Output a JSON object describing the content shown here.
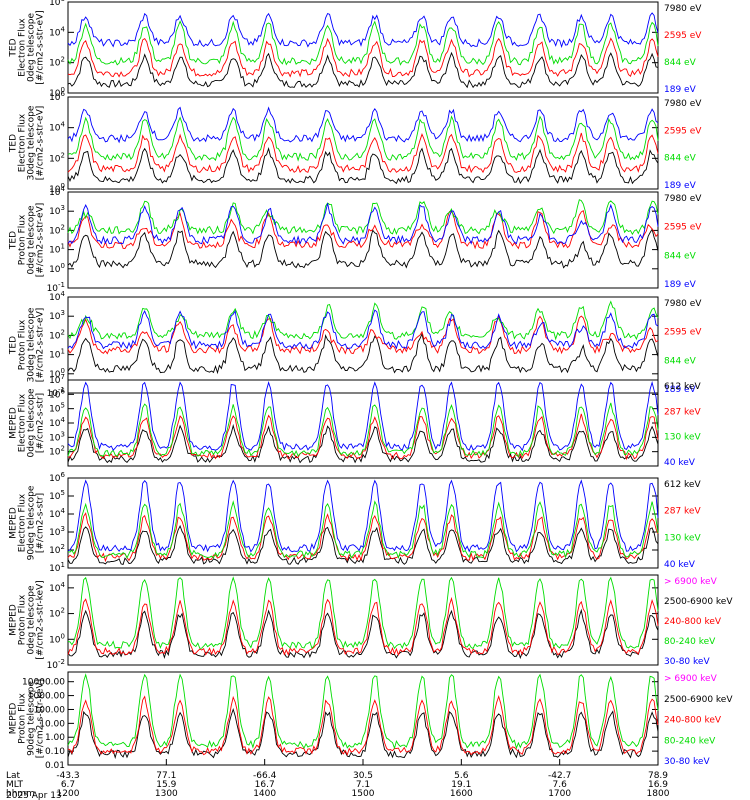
{
  "energy_colors": {
    "black": "#000000",
    "red": "#ff0000",
    "green": "#00dd00",
    "blue": "#0000ff",
    "magenta": "#ff00ff"
  },
  "chart_data": {
    "type": "line",
    "x_axis": {
      "row_labels": [
        "Lat",
        "MLT",
        "hhmm"
      ],
      "tick_times": [
        "1200",
        "1300",
        "1400",
        "1500",
        "1600",
        "1700",
        "1800"
      ],
      "lat_values": [
        "-43.3",
        "77.1",
        "-66.4",
        "30.5",
        "5.6",
        "-42.7",
        "78.9"
      ],
      "mlt_values": [
        "6.7",
        "15.9",
        "16.7",
        "7.1",
        "19.1",
        "7.6",
        "16.9"
      ],
      "date": "2025 Apr 13"
    },
    "panels": [
      {
        "id": "ted_e_0",
        "ylabel_lines": [
          "TED",
          "Electron Flux",
          "0deg telescope",
          "[#/cm2-s-str-eV]"
        ],
        "scale": "log",
        "ylim": [
          1,
          1000000
        ],
        "yticks": [
          {
            "v": 1,
            "label": "10^0"
          },
          {
            "v": 100,
            "label": "10^2"
          },
          {
            "v": 10000,
            "label": "10^4"
          },
          {
            "v": 1000000,
            "label": "10^6"
          }
        ],
        "series": [
          {
            "name": "7980 eV",
            "color": "black"
          },
          {
            "name": "2595 eV",
            "color": "red"
          },
          {
            "name": "844 eV",
            "color": "green"
          },
          {
            "name": "189 eV",
            "color": "blue"
          }
        ]
      },
      {
        "id": "ted_e_30",
        "ylabel_lines": [
          "TED",
          "Electron Flux",
          "30deg telescope",
          "[#/cm2-s-str-eV]"
        ],
        "scale": "log",
        "ylim": [
          1,
          1000000
        ],
        "yticks": [
          {
            "v": 1,
            "label": "10^0"
          },
          {
            "v": 100,
            "label": "10^2"
          },
          {
            "v": 10000,
            "label": "10^4"
          },
          {
            "v": 1000000,
            "label": "10^6"
          }
        ],
        "series": [
          {
            "name": "7980 eV",
            "color": "black"
          },
          {
            "name": "2595 eV",
            "color": "red"
          },
          {
            "name": "844 eV",
            "color": "green"
          },
          {
            "name": "189 eV",
            "color": "blue"
          }
        ]
      },
      {
        "id": "ted_p_0",
        "ylabel_lines": [
          "TED",
          "Proton Flux",
          "0deg telescope",
          "[#/cm2-s-str-eV]"
        ],
        "scale": "log",
        "ylim": [
          0.1,
          10000
        ],
        "yticks": [
          {
            "v": 0.1,
            "label": "10^-1"
          },
          {
            "v": 1,
            "label": "10^0"
          },
          {
            "v": 10,
            "label": "10^1"
          },
          {
            "v": 100,
            "label": "10^2"
          },
          {
            "v": 1000,
            "label": "10^3"
          },
          {
            "v": 10000,
            "label": "10^4"
          }
        ],
        "series": [
          {
            "name": "7980 eV",
            "color": "black"
          },
          {
            "name": "2595 eV",
            "color": "red"
          },
          {
            "name": "844 eV",
            "color": "green"
          },
          {
            "name": "189 eV",
            "color": "blue"
          }
        ]
      },
      {
        "id": "ted_p_30",
        "ylabel_lines": [
          "TED",
          "Proton Flux",
          "30deg telescope",
          "[#/cm2-s-str-eV]"
        ],
        "scale": "log",
        "ylim": [
          0.1,
          10000
        ],
        "yticks": [
          {
            "v": 0.1,
            "label": "10^-1"
          },
          {
            "v": 1,
            "label": "10^0"
          },
          {
            "v": 10,
            "label": "10^1"
          },
          {
            "v": 100,
            "label": "10^2"
          },
          {
            "v": 1000,
            "label": "10^3"
          },
          {
            "v": 10000,
            "label": "10^4"
          }
        ],
        "series": [
          {
            "name": "7980 eV",
            "color": "black"
          },
          {
            "name": "2595 eV",
            "color": "red"
          },
          {
            "name": "844 eV",
            "color": "green"
          },
          {
            "name": "189 eV",
            "color": "blue"
          }
        ]
      },
      {
        "id": "meped_e_0",
        "ylabel_lines": [
          "MEPED",
          "Electron Flux",
          "0deg telescope",
          "[#/cm2-s-str]"
        ],
        "scale": "log",
        "ylim": [
          10,
          10000000
        ],
        "yticks": [
          {
            "v": 100,
            "label": "10^2"
          },
          {
            "v": 1000,
            "label": "10^3"
          },
          {
            "v": 10000,
            "label": "10^4"
          },
          {
            "v": 100000,
            "label": "10^5"
          },
          {
            "v": 1000000,
            "label": "10^6"
          },
          {
            "v": 10000000,
            "label": "10^7"
          }
        ],
        "series": [
          {
            "name": "612 keV",
            "color": "black"
          },
          {
            "name": "287 keV",
            "color": "red"
          },
          {
            "name": "130 keV",
            "color": "green"
          },
          {
            "name": "40 keV",
            "color": "blue"
          }
        ]
      },
      {
        "id": "meped_e_90",
        "ylabel_lines": [
          "MEPED",
          "Electron Flux",
          "90deg telescope",
          "[#/cm2-s-str]"
        ],
        "scale": "log",
        "ylim": [
          10,
          1000000
        ],
        "yticks": [
          {
            "v": 10,
            "label": "10^1"
          },
          {
            "v": 100,
            "label": "10^2"
          },
          {
            "v": 1000,
            "label": "10^3"
          },
          {
            "v": 10000,
            "label": "10^4"
          },
          {
            "v": 100000,
            "label": "10^5"
          },
          {
            "v": 1000000,
            "label": "10^6"
          }
        ],
        "series": [
          {
            "name": "612 keV",
            "color": "black"
          },
          {
            "name": "287 keV",
            "color": "red"
          },
          {
            "name": "130 keV",
            "color": "green"
          },
          {
            "name": "40 keV",
            "color": "blue"
          }
        ]
      },
      {
        "id": "meped_p_0",
        "ylabel_lines": [
          "MEPED",
          "Proton Flux",
          "0deg telescope",
          "[#/cm2-s-str-keV]"
        ],
        "scale": "log",
        "ylim": [
          0.01,
          100000
        ],
        "yticks": [
          {
            "v": 0.01,
            "label": "10^-2"
          },
          {
            "v": 1,
            "label": "10^0"
          },
          {
            "v": 100,
            "label": "10^2"
          },
          {
            "v": 10000,
            "label": "10^4"
          }
        ],
        "series": [
          {
            "name": "> 6900 keV",
            "color": "magenta"
          },
          {
            "name": "2500-6900 keV",
            "color": "black"
          },
          {
            "name": "240-800 keV",
            "color": "red"
          },
          {
            "name": "80-240 keV",
            "color": "green"
          },
          {
            "name": "30-80 keV",
            "color": "blue"
          }
        ]
      },
      {
        "id": "meped_p_90",
        "ylabel_lines": [
          "MEPED",
          "Proton Flux",
          "90deg telescope",
          "[#/cm2-s-str-keV]"
        ],
        "scale": "log",
        "ylim": [
          0.01,
          50000
        ],
        "yticks": [
          {
            "v": 0.01,
            "label": "0.01"
          },
          {
            "v": 0.1,
            "label": "0.10"
          },
          {
            "v": 1,
            "label": "1.00"
          },
          {
            "v": 10,
            "label": "10.00"
          },
          {
            "v": 100,
            "label": "100.00"
          },
          {
            "v": 1000,
            "label": "1000.00"
          },
          {
            "v": 10000,
            "label": "10000.00"
          }
        ],
        "series": [
          {
            "name": "> 6900 keV",
            "color": "magenta"
          },
          {
            "name": "2500-6900 keV",
            "color": "black"
          },
          {
            "name": "240-800 keV",
            "color": "red"
          },
          {
            "name": "80-240 keV",
            "color": "green"
          },
          {
            "name": "30-80 keV",
            "color": "blue"
          }
        ]
      }
    ]
  }
}
